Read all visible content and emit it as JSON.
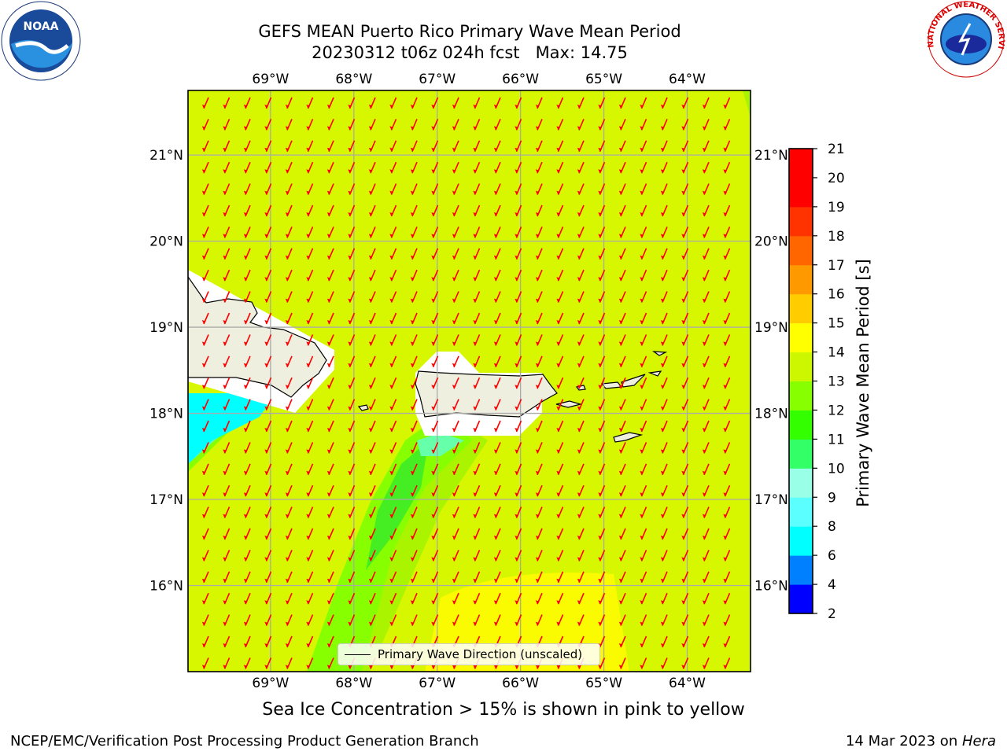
{
  "title": {
    "line1": "GEFS MEAN Puerto Rico Primary Wave Mean Period",
    "line2": "20230312 t06z 024h fcst   Max: 14.75"
  },
  "logos": {
    "left": {
      "name": "noaa-logo",
      "text": "NOAA"
    },
    "right": {
      "name": "nws-logo",
      "text": "NATIONAL WEATHER SERVICE"
    }
  },
  "map": {
    "lon_ticks": [
      "69°W",
      "68°W",
      "67°W",
      "66°W",
      "65°W",
      "64°W"
    ],
    "lat_ticks": [
      "21°N",
      "20°N",
      "19°N",
      "18°N",
      "17°N",
      "16°N"
    ],
    "lon_values": [
      -69,
      -68,
      -67,
      -66,
      -65,
      -64
    ],
    "lat_values": [
      21,
      20,
      19,
      18,
      17,
      16
    ],
    "extent": {
      "lon_min": -69.99,
      "lon_max": -63.24,
      "lat_min": 15.0,
      "lat_max": 21.75
    },
    "background_color": "#d7f700",
    "arrow_color": "#ff0000",
    "arrow_direction": "toward south-southwest",
    "land_color": "#efefe0",
    "grid": true
  },
  "colorbar": {
    "label": "Primary Wave Mean Period [s]",
    "levels": [
      2,
      4,
      6,
      8,
      9,
      10,
      11,
      12,
      13,
      14,
      15,
      16,
      17,
      18,
      19,
      20,
      21
    ],
    "tick_labels": [
      "2",
      "4",
      "6",
      "8",
      "9",
      "10",
      "11",
      "12",
      "13",
      "14",
      "15",
      "16",
      "17",
      "18",
      "19",
      "20",
      "21"
    ],
    "colors": [
      "#0000ff",
      "#0080ff",
      "#00ffff",
      "#5cffff",
      "#99ffe6",
      "#33ff66",
      "#33ff00",
      "#88ff00",
      "#cdf700",
      "#ffff00",
      "#ffcc00",
      "#ff9900",
      "#ff6600",
      "#ff3300",
      "#ff0000",
      "#ff0000"
    ]
  },
  "legend": {
    "label": "Primary Wave Direction (unscaled)"
  },
  "note": "Sea Ice Concentration > 15% is shown in pink to yellow",
  "footer": {
    "left": "NCEP/EMC/Verification Post Processing Product Generation Branch",
    "date": "14 Mar 2023 on ",
    "machine": "Hera"
  }
}
